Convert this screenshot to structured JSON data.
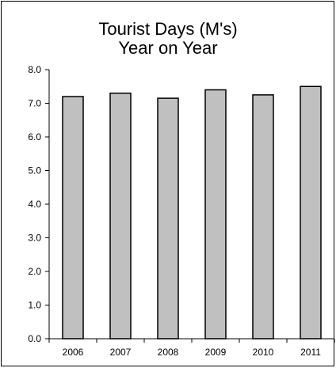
{
  "chart_data": {
    "type": "bar",
    "title_lines": [
      "Tourist Days (M's)",
      "Year on Year"
    ],
    "categories": [
      "2006",
      "2007",
      "2008",
      "2009",
      "2010",
      "2011"
    ],
    "values": [
      7.2,
      7.3,
      7.15,
      7.4,
      7.25,
      7.5
    ],
    "y_ticks": [
      "0.0",
      "1.0",
      "2.0",
      "3.0",
      "4.0",
      "5.0",
      "6.0",
      "7.0",
      "8.0"
    ],
    "ylim": [
      0,
      8
    ],
    "xlabel": "",
    "ylabel": "",
    "grid": false,
    "legend": "none",
    "bar_color": "#c0c0c0",
    "bar_border_color": "#000000"
  }
}
